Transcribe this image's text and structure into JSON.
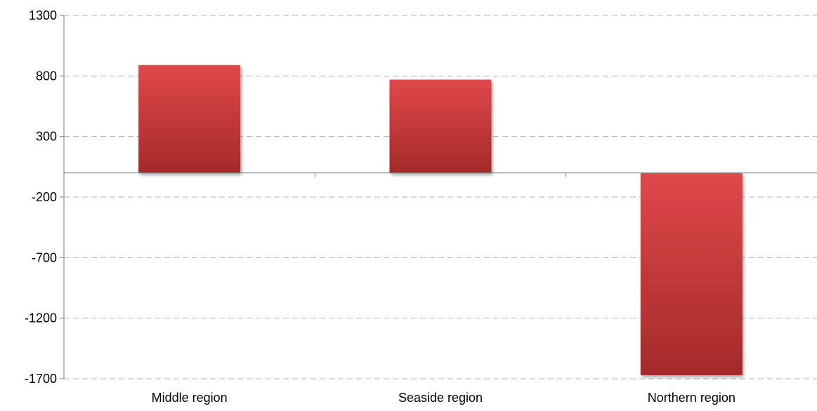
{
  "chart_data": {
    "type": "bar",
    "title": "",
    "xlabel": "",
    "ylabel": "",
    "categories": [
      "Middle region",
      "Seaside region",
      "Northern region"
    ],
    "values": [
      890,
      770,
      -1670
    ],
    "ylim": [
      -1700,
      1300
    ],
    "yticks": [
      1300,
      800,
      300,
      -200,
      -700,
      -1200,
      -1700
    ],
    "ytick_labels": [
      "1300",
      "800",
      "300",
      "-200",
      "-700",
      "-1200",
      "-1700"
    ],
    "grid": true,
    "legend": "none",
    "colors": {
      "bar_light": "#e0484a",
      "bar_dark": "#a52a2a",
      "gridline": "#b3b3b3",
      "axis": "#7f7f7f"
    }
  }
}
